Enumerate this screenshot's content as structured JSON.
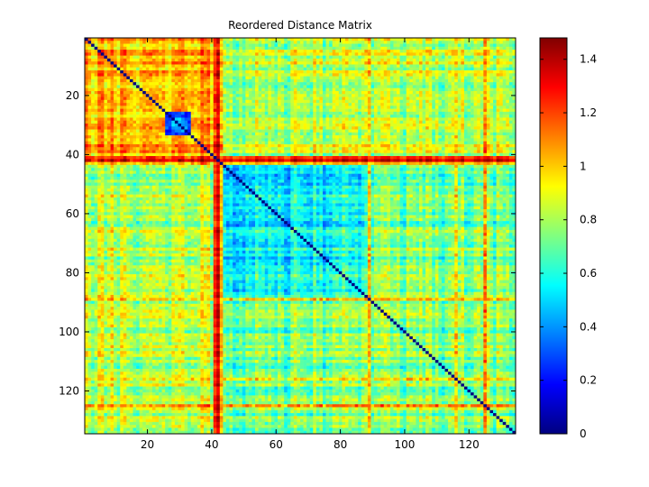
{
  "chart_data": {
    "type": "heatmap",
    "title": "Reordered Distance Matrix",
    "xlabel": "",
    "ylabel": "",
    "n": 134,
    "xlim": [
      0.5,
      134.5
    ],
    "ylim": [
      0.5,
      134.5
    ],
    "x_ticks": [
      20,
      40,
      60,
      80,
      100,
      120
    ],
    "y_ticks": [
      20,
      40,
      60,
      80,
      100,
      120
    ],
    "y_direction": "reversed",
    "colormap": "jet",
    "clim": [
      0,
      1.48
    ],
    "colorbar_ticks": [
      0,
      0.2,
      0.4,
      0.6,
      0.8,
      1,
      1.2,
      1.4
    ],
    "diagonal_value": 0,
    "blocks": [
      {
        "rows": [
          1,
          42
        ],
        "cols": [
          1,
          42
        ],
        "mean": 1.05,
        "note": "upper-left block, warm"
      },
      {
        "rows": [
          26,
          33
        ],
        "cols": [
          26,
          33
        ],
        "mean": 0.35,
        "note": "low-distance sub-cluster"
      },
      {
        "rows": [
          43,
          134
        ],
        "cols": [
          43,
          134
        ],
        "mean": 0.72
      },
      {
        "rows": [
          43,
          88
        ],
        "cols": [
          43,
          88
        ],
        "mean": 0.55,
        "note": "cyan cluster"
      },
      {
        "rows": [
          1,
          42
        ],
        "cols": [
          43,
          134
        ],
        "mean": 0.82
      }
    ],
    "high_distance_bands": [
      {
        "index": 42,
        "value": 1.32
      },
      {
        "index": 41,
        "value": 1.25
      },
      {
        "index": 43,
        "value": 1.2
      },
      {
        "index": 89,
        "value": 1.15
      },
      {
        "index": 116,
        "value": 1.05
      },
      {
        "index": 125,
        "value": 1.1
      }
    ]
  }
}
